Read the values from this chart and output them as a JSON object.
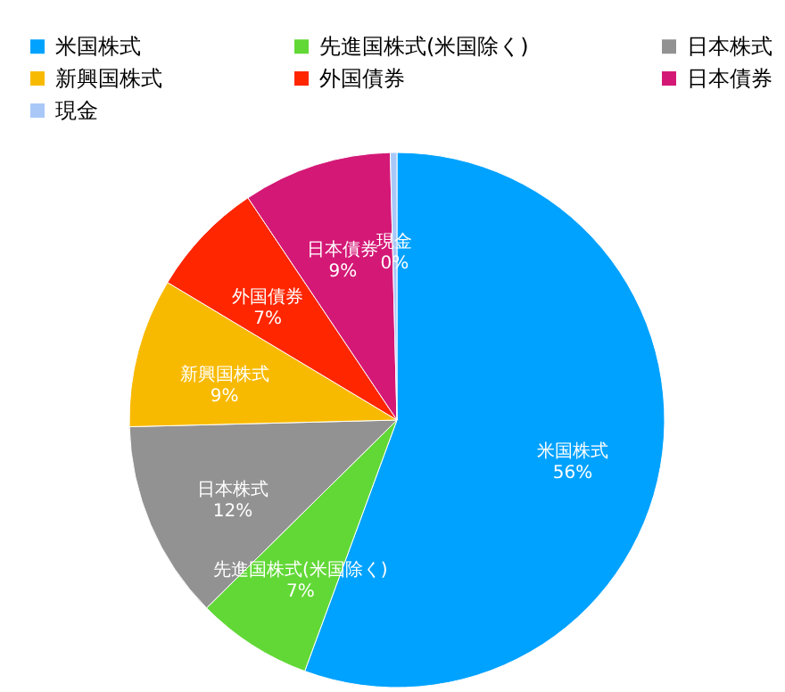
{
  "chart_data": {
    "type": "pie",
    "categories": [
      "米国株式",
      "先進国株式(米国除く)",
      "日本株式",
      "新興国株式",
      "外国債券",
      "日本債券",
      "現金"
    ],
    "values": [
      55.6,
      7,
      12,
      9,
      7,
      9,
      0.4
    ],
    "value_labels": [
      "56%",
      "7%",
      "12%",
      "9%",
      "7%",
      "9%",
      "0%"
    ],
    "colors": [
      "#00a2ff",
      "#61d836",
      "#929292",
      "#f8ba00",
      "#ff2600",
      "#d41876",
      "#a9c8f8"
    ],
    "legend": "top"
  }
}
